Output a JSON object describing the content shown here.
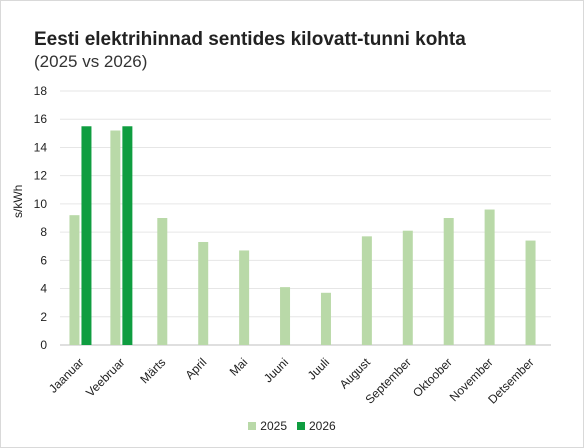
{
  "chart_data": {
    "type": "bar",
    "title": "Eesti elektrihinnad sentides kilovatt-tunni kohta",
    "subtitle": "(2025 vs 2026)",
    "ylabel": "s/kWh",
    "xlabel": "",
    "ylim": [
      0,
      18
    ],
    "yticks": [
      0,
      2,
      4,
      6,
      8,
      10,
      12,
      14,
      16,
      18
    ],
    "grid": true,
    "legend_position": "bottom",
    "categories": [
      "Jaanuar",
      "Veebruar",
      "Märts",
      "April",
      "Mai",
      "Juuni",
      "Juuli",
      "August",
      "September",
      "Oktoober",
      "November",
      "Detsember"
    ],
    "series": [
      {
        "name": "2025",
        "color": "#b9d9a8",
        "values": [
          9.2,
          15.2,
          9.0,
          7.3,
          6.7,
          4.1,
          3.7,
          7.7,
          8.1,
          9.0,
          9.6,
          7.4
        ]
      },
      {
        "name": "2026",
        "color": "#0f9d40",
        "values": [
          15.5,
          15.5,
          null,
          null,
          null,
          null,
          null,
          null,
          null,
          null,
          null,
          null
        ]
      }
    ]
  }
}
